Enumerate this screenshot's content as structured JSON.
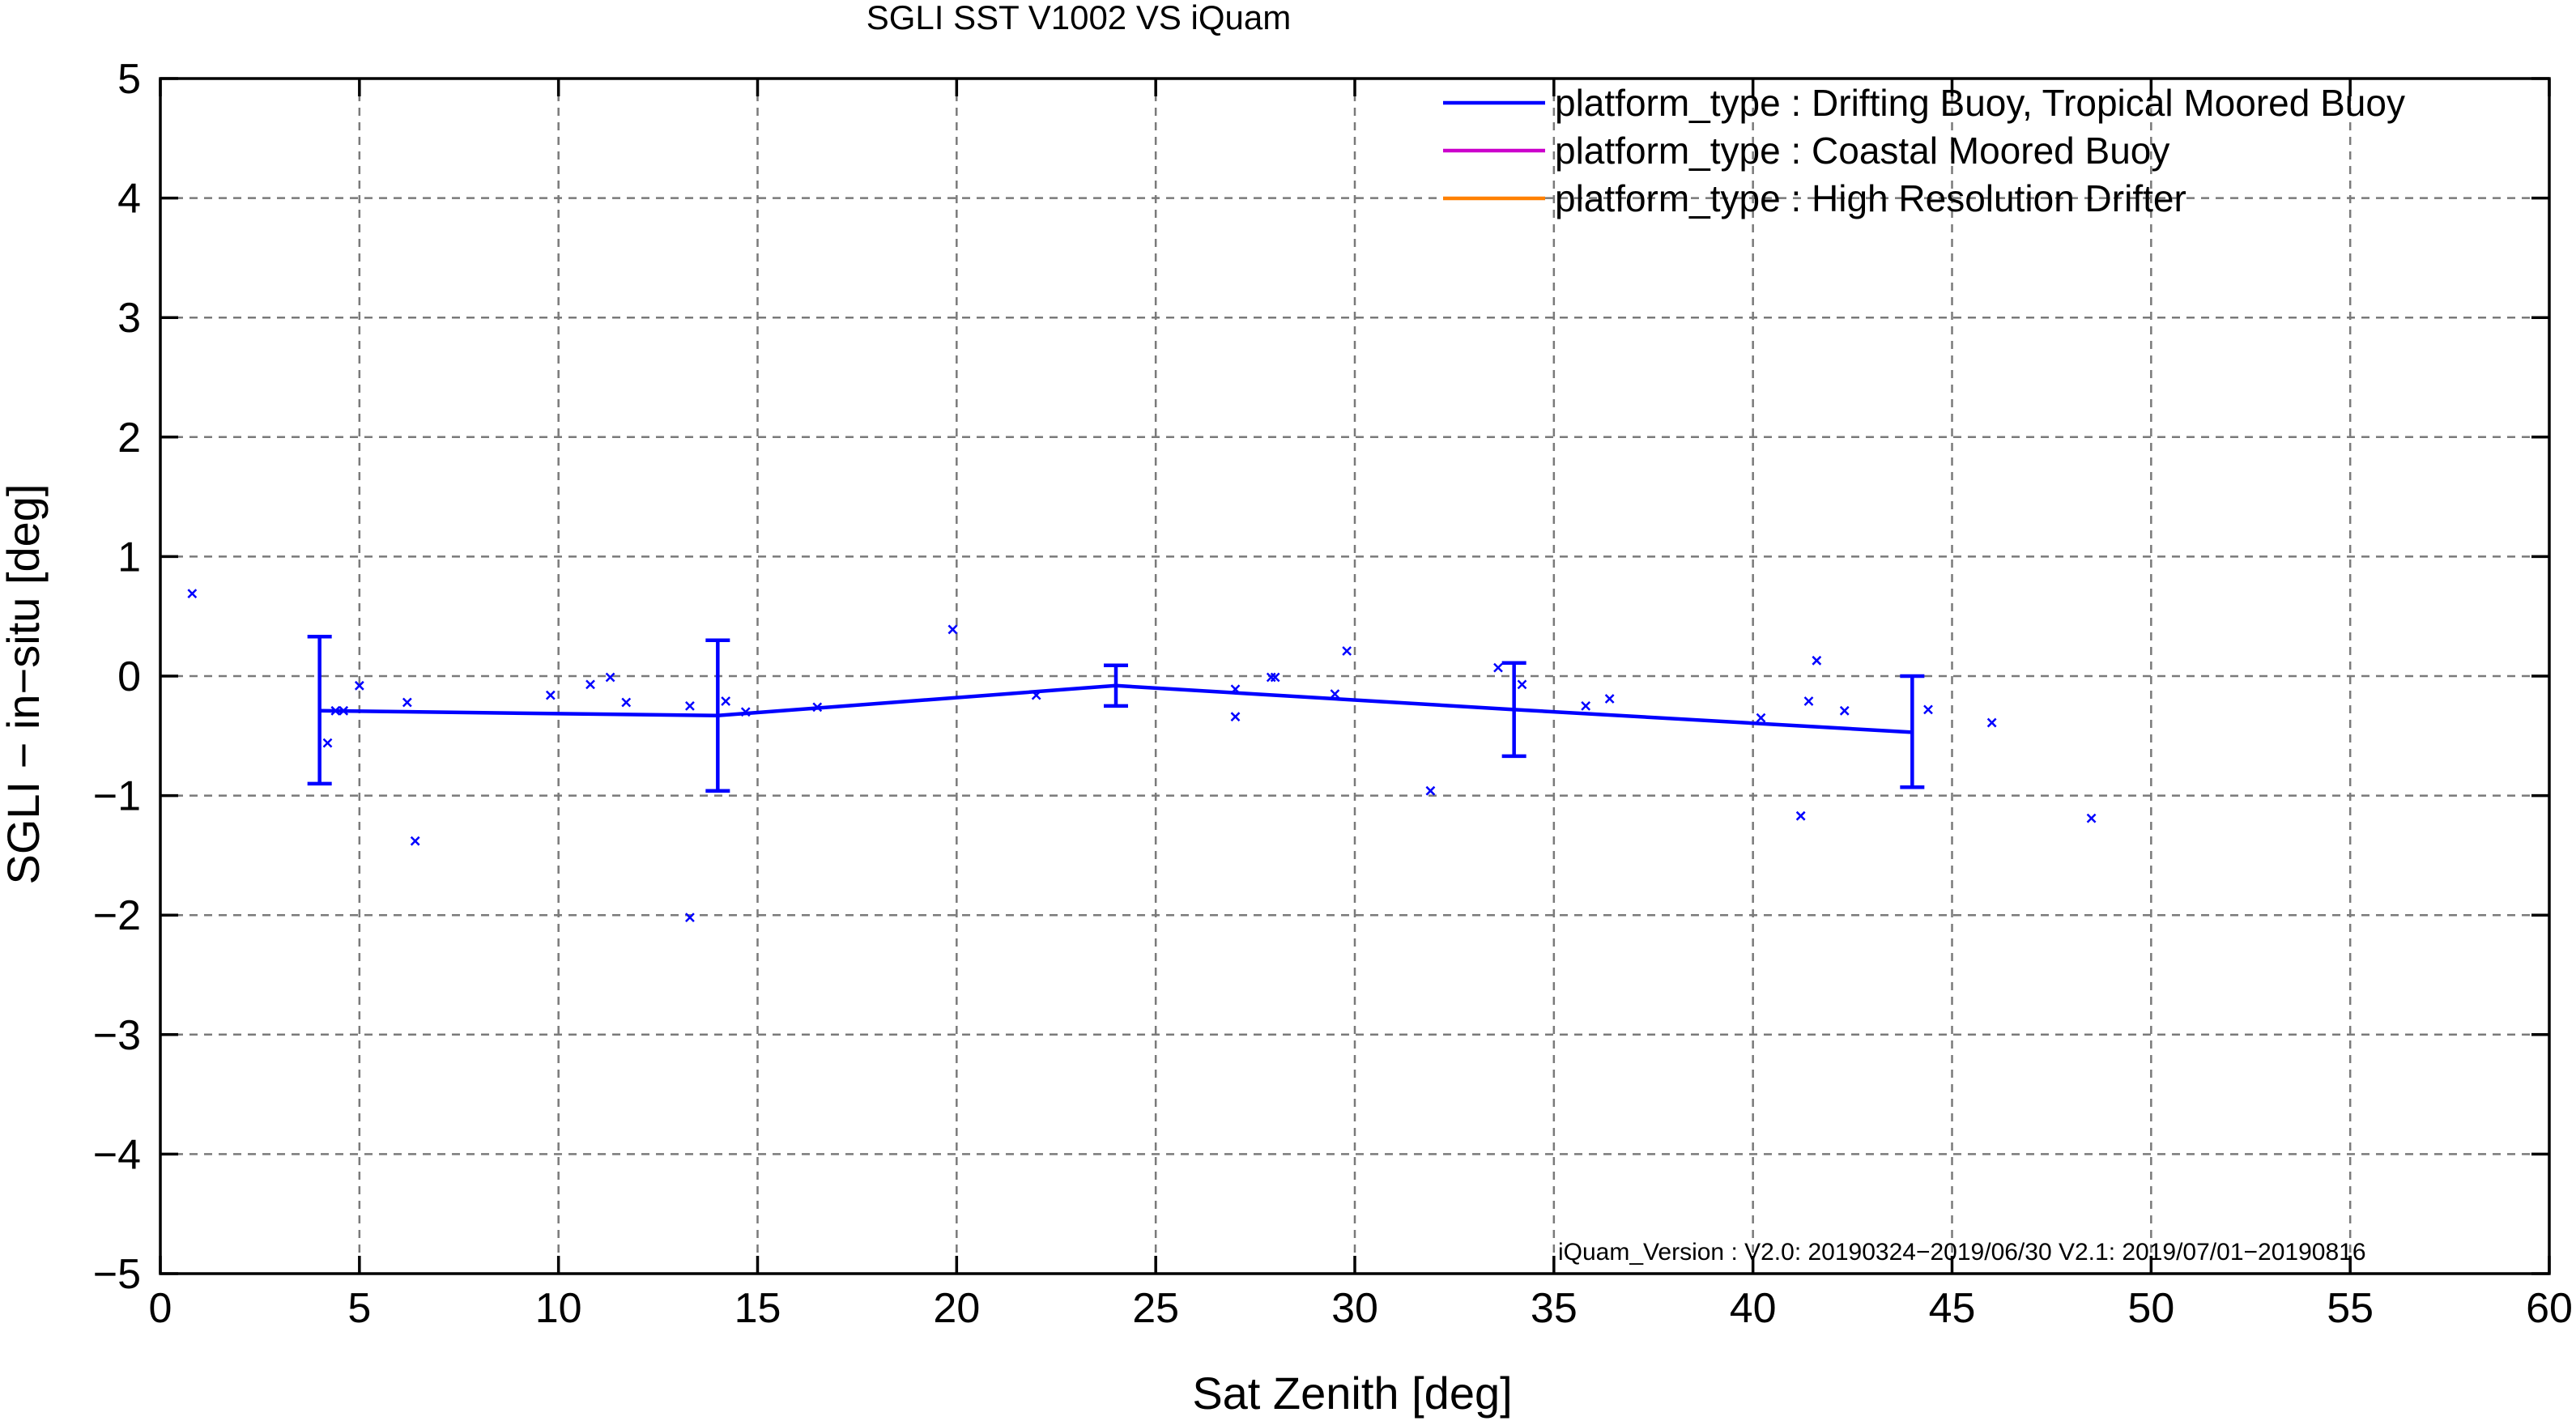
{
  "chart_data": {
    "type": "scatter",
    "title": "SGLI SST V1002 VS iQuam",
    "xlabel": "Sat Zenith [deg]",
    "ylabel": "SGLI − in−situ [deg]",
    "xlim": [
      0,
      60
    ],
    "ylim": [
      -5,
      5
    ],
    "xticks": [
      0,
      5,
      10,
      15,
      20,
      25,
      30,
      35,
      40,
      45,
      50,
      55,
      60
    ],
    "yticks": [
      5,
      4,
      3,
      2,
      1,
      0,
      -1,
      -2,
      -3,
      -4,
      -5
    ],
    "xtick_labels": [
      "0",
      "5",
      "10",
      "15",
      "20",
      "25",
      "30",
      "35",
      "40",
      "45",
      "50",
      "55",
      "60"
    ],
    "ytick_labels": [
      "5",
      "4",
      "3",
      "2",
      "1",
      "0",
      "−1",
      "−2",
      "−3",
      "−4",
      "−5"
    ],
    "grid": true,
    "legend_position": "top-right",
    "legend": [
      {
        "label": "platform_type : Drifting Buoy, Tropical Moored Buoy",
        "color": "#0000ff"
      },
      {
        "label": "platform_type : Coastal Moored Buoy",
        "color": "#cc00cc"
      },
      {
        "label": "platform_type : High Resolution Drifter",
        "color": "#ff8000"
      }
    ],
    "annotation": "iQuam_Version :  V2.0: 20190324−2019/06/30 V2.1: 2019/07/01−20190816",
    "scatter_points": [
      {
        "x": 0.8,
        "y": 0.69
      },
      {
        "x": 4.2,
        "y": -0.56
      },
      {
        "x": 4.4,
        "y": -0.29
      },
      {
        "x": 4.6,
        "y": -0.29
      },
      {
        "x": 5.0,
        "y": -0.08
      },
      {
        "x": 6.2,
        "y": -0.22
      },
      {
        "x": 6.4,
        "y": -1.38
      },
      {
        "x": 9.8,
        "y": -0.16
      },
      {
        "x": 10.8,
        "y": -0.07
      },
      {
        "x": 11.3,
        "y": -0.01
      },
      {
        "x": 11.7,
        "y": -0.22
      },
      {
        "x": 13.3,
        "y": -2.02
      },
      {
        "x": 13.3,
        "y": -0.25
      },
      {
        "x": 14.2,
        "y": -0.21
      },
      {
        "x": 14.7,
        "y": -0.3
      },
      {
        "x": 16.5,
        "y": -0.26
      },
      {
        "x": 19.9,
        "y": 0.39
      },
      {
        "x": 22.0,
        "y": -0.16
      },
      {
        "x": 27.0,
        "y": -0.34
      },
      {
        "x": 27.0,
        "y": -0.11
      },
      {
        "x": 27.9,
        "y": -0.01
      },
      {
        "x": 28.0,
        "y": -0.01
      },
      {
        "x": 29.5,
        "y": -0.15
      },
      {
        "x": 29.8,
        "y": 0.21
      },
      {
        "x": 31.9,
        "y": -0.96
      },
      {
        "x": 33.6,
        "y": 0.07
      },
      {
        "x": 34.2,
        "y": -0.07
      },
      {
        "x": 35.8,
        "y": -0.25
      },
      {
        "x": 36.4,
        "y": -0.19
      },
      {
        "x": 40.2,
        "y": -0.35
      },
      {
        "x": 41.2,
        "y": -1.17
      },
      {
        "x": 41.4,
        "y": -0.21
      },
      {
        "x": 41.6,
        "y": 0.13
      },
      {
        "x": 42.3,
        "y": -0.29
      },
      {
        "x": 44.4,
        "y": -0.28
      },
      {
        "x": 46.0,
        "y": -0.39
      },
      {
        "x": 48.5,
        "y": -1.19
      }
    ],
    "series": [
      {
        "name": "platform_type : Drifting Buoy, Tropical Moored Buoy",
        "color": "#0000ff",
        "x": [
          4,
          14,
          24,
          34,
          44
        ],
        "y": [
          -0.29,
          -0.33,
          -0.08,
          -0.28,
          -0.47
        ],
        "yerr_low": [
          -0.9,
          -0.96,
          -0.25,
          -0.67,
          -0.93
        ],
        "yerr_high": [
          0.33,
          0.3,
          0.09,
          0.11,
          0.0
        ]
      }
    ]
  }
}
